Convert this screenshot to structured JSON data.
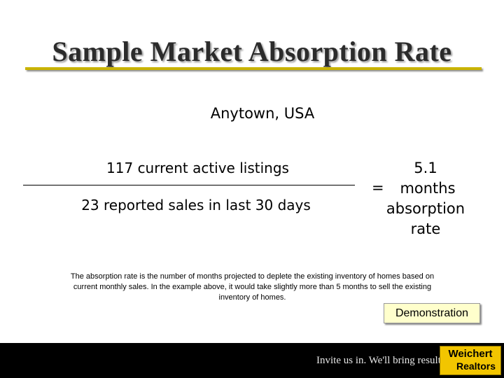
{
  "slide": {
    "title": "Sample Market Absorption Rate",
    "city": "Anytown, USA",
    "numerator": "117 current active listings",
    "denominator": "23 reported sales in last 30 days",
    "equals": "=",
    "result_value": "5.1",
    "result_label_1": "months",
    "result_label_2": "absorption",
    "result_label_3": "rate",
    "note": "The absorption rate is the number of months projected to deplete the existing inventory of homes based on current monthly sales. In the example above, it would take slightly more than 5 months to sell the existing inventory of homes.",
    "demo_button": "Demonstration"
  },
  "footer": {
    "tagline": "Invite us in. We'll bring results.",
    "logo_line1": "Weichert",
    "logo_line2": "Realtors"
  },
  "colors": {
    "accent": "#c9b300",
    "logo_yellow": "#f2c500",
    "demo_bg": "#ffffcc"
  }
}
